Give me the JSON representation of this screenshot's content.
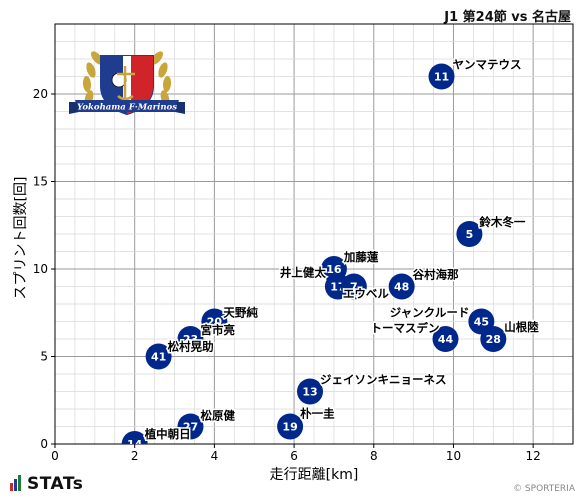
{
  "header": {
    "title": "J1 第24節 vs 名古屋"
  },
  "footer": {
    "brand": "STATs",
    "credit": "© SPORTERIA"
  },
  "logo": {
    "text": "Yokohama F·Marinos",
    "colors": {
      "primary": "#1f3c8e",
      "secondary": "#d1232a",
      "gold": "#c9a63a"
    }
  },
  "colors": {
    "marker": "#00288a",
    "marker_text": "#ffffff",
    "grid": "#cccccc",
    "label": "#000000"
  },
  "chart_data": {
    "type": "scatter",
    "xlabel": "走行距離[km]",
    "ylabel": "スプリント回数[回]",
    "xlim": [
      0,
      13
    ],
    "ylim": [
      0,
      24
    ],
    "xticks": [
      0,
      2,
      4,
      6,
      8,
      10,
      12
    ],
    "yticks": [
      0,
      5,
      10,
      15,
      20
    ],
    "grid": true,
    "points": [
      {
        "number": "11",
        "name": "ヤンマテウス",
        "x": 9.7,
        "y": 21
      },
      {
        "number": "5",
        "name": "鈴木冬一",
        "x": 10.4,
        "y": 12
      },
      {
        "number": "16",
        "name": "加藤蓮",
        "x": 7.0,
        "y": 10
      },
      {
        "number": "17",
        "name": "井上健太",
        "x": 7.1,
        "y": 9
      },
      {
        "number": "7",
        "name": "エウベル",
        "x": 7.5,
        "y": 9
      },
      {
        "number": "48",
        "name": "谷村海那",
        "x": 8.7,
        "y": 9
      },
      {
        "number": "45",
        "name": "ジャンクルード",
        "x": 10.7,
        "y": 7
      },
      {
        "number": "44",
        "name": "トーマスデン",
        "x": 9.8,
        "y": 6
      },
      {
        "number": "28",
        "name": "山根陸",
        "x": 11.0,
        "y": 6
      },
      {
        "number": "20",
        "name": "天野純",
        "x": 4.0,
        "y": 7
      },
      {
        "number": "23",
        "name": "宮市亮",
        "x": 3.4,
        "y": 6
      },
      {
        "number": "41",
        "name": "松村晃助",
        "x": 2.6,
        "y": 5
      },
      {
        "number": "13",
        "name": "ジェイソンキニョーネス",
        "x": 6.4,
        "y": 3
      },
      {
        "number": "27",
        "name": "松原健",
        "x": 3.4,
        "y": 1
      },
      {
        "number": "19",
        "name": "朴一圭",
        "x": 5.9,
        "y": 1
      },
      {
        "number": "14",
        "name": "植中朝日",
        "x": 2.0,
        "y": 0
      }
    ]
  }
}
